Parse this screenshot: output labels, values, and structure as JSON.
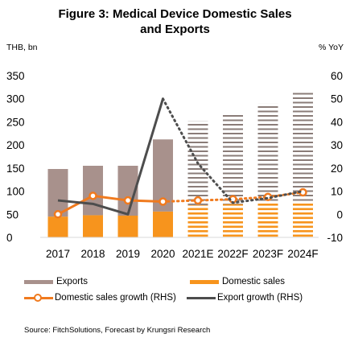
{
  "chart_data": {
    "type": "bar",
    "title": "Figure 3:  Medical Device Domestic Sales and Exports",
    "title_lines": [
      "Figure 3:  Medical Device Domestic Sales",
      "and Exports"
    ],
    "y_left_label": "THB, bn",
    "y_right_label": "% YoY",
    "y_left_ticks": [
      "350",
      "300",
      "250",
      "200",
      "150",
      "100",
      "50",
      "0"
    ],
    "y_right_ticks": [
      "60",
      "50",
      "40",
      "30",
      "20",
      "10",
      "0",
      "-10"
    ],
    "ylim_left": [
      0,
      350
    ],
    "ylim_right": [
      -10,
      60
    ],
    "categories": [
      "2017",
      "2018",
      "2019",
      "2020",
      "2021E",
      "2022F",
      "2023F",
      "2024F"
    ],
    "forecast_from_index": 4,
    "stacked": true,
    "series": [
      {
        "name": "Domestic sales",
        "values": [
          45,
          48,
          47,
          56,
          70,
          72,
          74,
          76
        ],
        "color": "#f7941d"
      },
      {
        "name": "Exports",
        "values": [
          103,
          107,
          108,
          156,
          182,
          198,
          216,
          241
        ],
        "color": "#a8918c"
      }
    ],
    "line_series": [
      {
        "name": "Domestic sales growth (RHS)",
        "axis": "right",
        "color": "#f07a1e",
        "values": [
          0,
          8,
          6,
          5.5,
          6,
          6.5,
          7.5,
          9.5
        ]
      },
      {
        "name": "Export growth (RHS)",
        "axis": "right",
        "color": "#4d4d4d",
        "values": [
          6,
          4.5,
          0,
          50,
          22,
          5,
          7,
          10
        ]
      }
    ],
    "grid": false,
    "legend_position": "bottom"
  },
  "legend": {
    "exports": "Exports",
    "domestic": "Domestic sales",
    "domestic_growth": "Domestic sales growth (RHS)",
    "export_growth": "Export growth (RHS)"
  },
  "source": "Source: FitchSolutions, Forecast by Krungsri Research"
}
